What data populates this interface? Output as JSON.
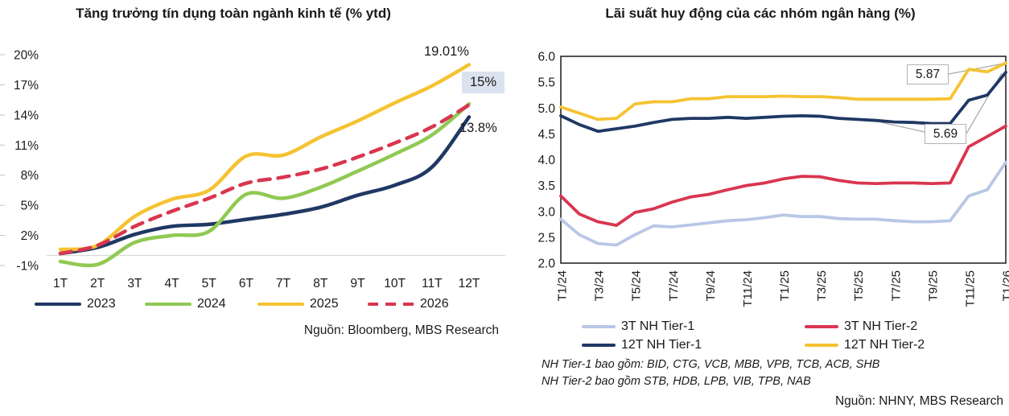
{
  "page": {
    "background": "#ffffff",
    "text_color": "#1a1a1a"
  },
  "chart_data": [
    {
      "id": "credit-growth",
      "type": "line",
      "title": "Tăng trưởng tín dụng toàn ngành kinh tế (% ytd)",
      "source": "Nguồn: Bloomberg, MBS Research",
      "categories": [
        "1T",
        "2T",
        "3T",
        "4T",
        "5T",
        "6T",
        "7T",
        "8T",
        "9T",
        "10T",
        "11T",
        "12T"
      ],
      "ylim": [
        -1,
        20
      ],
      "yticks": [
        20,
        17,
        14,
        11,
        8,
        5,
        2,
        -1
      ],
      "ytick_suffix": "%",
      "grid": "zero-line-only",
      "legend_position": "bottom",
      "series": [
        {
          "name": "2023",
          "color": "#1f3864",
          "dash": false,
          "values": [
            0.2,
            0.8,
            2.1,
            2.9,
            3.1,
            3.6,
            4.1,
            4.8,
            6.0,
            7.0,
            8.8,
            13.8
          ]
        },
        {
          "name": "2024",
          "color": "#90c952",
          "dash": false,
          "values": [
            -0.6,
            -0.9,
            1.3,
            2.0,
            2.4,
            6.1,
            5.7,
            6.8,
            8.4,
            10.1,
            12.0,
            15.1
          ]
        },
        {
          "name": "2025",
          "color": "#f5c332",
          "dash": false,
          "values": [
            0.6,
            1.0,
            3.9,
            5.6,
            6.5,
            9.9,
            10.0,
            11.8,
            13.4,
            15.2,
            16.9,
            19.01
          ]
        },
        {
          "name": "2026",
          "color": "#d9364f",
          "dash": true,
          "values": [
            0.2,
            1.0,
            2.9,
            4.4,
            5.7,
            7.2,
            7.8,
            8.6,
            9.8,
            11.2,
            12.8,
            15.0
          ]
        }
      ],
      "annotations": [
        {
          "text": "19.01%",
          "series": "2025",
          "style": "plain"
        },
        {
          "text": "15%",
          "series": "2026",
          "style": "highlight",
          "bg": "#dbe2ef"
        },
        {
          "text": "13.8%",
          "series": "2023",
          "style": "plain"
        }
      ]
    },
    {
      "id": "deposit-rates",
      "type": "line",
      "title": "Lãi suất huy động của các nhóm ngân hàng (%)",
      "source": "Nguồn: NHNY, MBS Research",
      "notes": [
        "NH Tier-1 bao gồm: BID, CTG, VCB, MBB, VPB, TCB, ACB, SHB",
        "NH Tier-2 bao gồm STB, HDB, LPB, VIB, TPB, NAB"
      ],
      "x": [
        "T1/24",
        "T2/24",
        "T3/24",
        "T4/24",
        "T5/24",
        "T6/24",
        "T7/24",
        "T8/24",
        "T9/24",
        "T10/24",
        "T11/24",
        "T12/24",
        "T1/25",
        "T2/25",
        "T3/25",
        "T4/25",
        "T5/25",
        "T6/25",
        "T7/25",
        "T8/25",
        "T9/25",
        "T10/25",
        "T11/25",
        "T12/25",
        "T1/26"
      ],
      "xtick_every": 2,
      "ylim": [
        2.0,
        6.0
      ],
      "ytick_step": 0.5,
      "plot_border": true,
      "grid": "none",
      "legend_position": "bottom",
      "series": [
        {
          "name": "3T NH Tier-1",
          "color": "#b9c7e6",
          "dash": false,
          "values": [
            2.85,
            2.55,
            2.38,
            2.35,
            2.55,
            2.72,
            2.7,
            2.74,
            2.78,
            2.82,
            2.84,
            2.88,
            2.93,
            2.9,
            2.9,
            2.86,
            2.85,
            2.85,
            2.82,
            2.8,
            2.8,
            2.82,
            3.3,
            3.42,
            3.95
          ]
        },
        {
          "name": "3T NH Tier-2",
          "color": "#d9364f",
          "dash": false,
          "values": [
            3.3,
            2.95,
            2.8,
            2.73,
            2.98,
            3.05,
            3.18,
            3.28,
            3.33,
            3.42,
            3.5,
            3.55,
            3.63,
            3.68,
            3.67,
            3.6,
            3.55,
            3.54,
            3.55,
            3.55,
            3.54,
            3.55,
            4.25,
            4.45,
            4.65
          ]
        },
        {
          "name": "12T NH Tier-1",
          "color": "#1f3864",
          "dash": false,
          "values": [
            4.85,
            4.68,
            4.55,
            4.6,
            4.65,
            4.72,
            4.78,
            4.8,
            4.8,
            4.82,
            4.8,
            4.82,
            4.84,
            4.85,
            4.84,
            4.8,
            4.78,
            4.76,
            4.73,
            4.72,
            4.7,
            4.7,
            5.15,
            5.25,
            5.69
          ]
        },
        {
          "name": "12T NH Tier-2",
          "color": "#f5c332",
          "dash": false,
          "values": [
            5.02,
            4.9,
            4.78,
            4.8,
            5.08,
            5.12,
            5.12,
            5.18,
            5.18,
            5.22,
            5.22,
            5.22,
            5.23,
            5.22,
            5.22,
            5.2,
            5.17,
            5.17,
            5.17,
            5.17,
            5.17,
            5.18,
            5.75,
            5.7,
            5.87
          ]
        }
      ],
      "annotations": [
        {
          "text": "5.87",
          "series": "12T NH Tier-2"
        },
        {
          "text": "5.69",
          "series": "12T NH Tier-1"
        }
      ]
    }
  ]
}
